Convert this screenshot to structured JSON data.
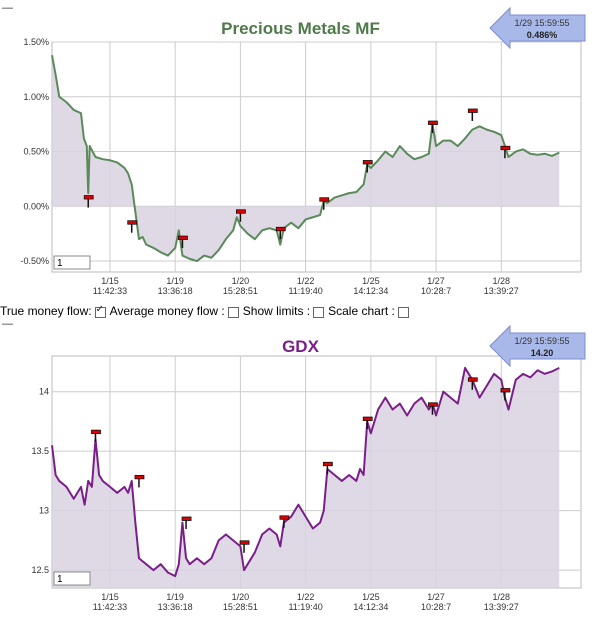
{
  "controls": {
    "true_money_flow": "True money flow:",
    "true_money_flow_checked": true,
    "average_money_flow": "Average money flow :",
    "average_money_flow_checked": false,
    "show_limits": "Show limits :",
    "show_limits_checked": false,
    "scale_chart": "Scale chart :",
    "scale_chart_checked": false
  },
  "colors": {
    "chart1_line": "#5a8a5a",
    "chart1_title": "#4f7a4a",
    "chart2_line": "#7a1f8a",
    "chart2_title": "#7a1f8a",
    "fill": "#d9d2e0",
    "marker": "#e00000",
    "grid": "#cccccc"
  },
  "chart_data": [
    {
      "type": "line",
      "title": "Precious Metals MF",
      "ylim": [
        -0.6,
        1.5
      ],
      "ytick_values": [
        -0.5,
        0,
        0.5,
        1.0,
        1.5
      ],
      "ytick_labels": [
        "-0.50%",
        "0.00%",
        "0.50%",
        "1.00%",
        "1.50%"
      ],
      "baseline": 0,
      "fill_to": "baseline",
      "x_ticks": [
        {
          "date": "1/15",
          "time": "11:42:33",
          "pos": 0.8
        },
        {
          "date": "1/19",
          "time": "13:36:18",
          "pos": 1.7
        },
        {
          "date": "1/20",
          "time": "15:28:51",
          "pos": 2.6
        },
        {
          "date": "1/22",
          "time": "11:19:40",
          "pos": 3.5
        },
        {
          "date": "1/25",
          "time": "14:12:34",
          "pos": 4.4
        },
        {
          "date": "1/27",
          "time": "10:28:7",
          "pos": 5.3
        },
        {
          "date": "1/28",
          "time": "13:39:27",
          "pos": 6.2
        }
      ],
      "callout": {
        "time": "1/29 15:59:55",
        "value": "0.486%"
      },
      "input_value": "1",
      "points": [
        [
          0,
          1.38
        ],
        [
          0.05,
          1.2
        ],
        [
          0.1,
          1.0
        ],
        [
          0.2,
          0.95
        ],
        [
          0.3,
          0.88
        ],
        [
          0.4,
          0.85
        ],
        [
          0.44,
          0.62
        ],
        [
          0.48,
          0.55
        ],
        [
          0.5,
          0.12
        ],
        [
          0.52,
          0.55
        ],
        [
          0.6,
          0.45
        ],
        [
          0.7,
          0.43
        ],
        [
          0.8,
          0.42
        ],
        [
          0.9,
          0.4
        ],
        [
          1.0,
          0.35
        ],
        [
          1.05,
          0.3
        ],
        [
          1.1,
          0.2
        ],
        [
          1.15,
          -0.05
        ],
        [
          1.2,
          -0.3
        ],
        [
          1.25,
          -0.28
        ],
        [
          1.3,
          -0.35
        ],
        [
          1.4,
          -0.38
        ],
        [
          1.5,
          -0.42
        ],
        [
          1.6,
          -0.45
        ],
        [
          1.7,
          -0.38
        ],
        [
          1.75,
          -0.22
        ],
        [
          1.8,
          -0.45
        ],
        [
          1.9,
          -0.48
        ],
        [
          2.0,
          -0.5
        ],
        [
          2.1,
          -0.45
        ],
        [
          2.2,
          -0.47
        ],
        [
          2.3,
          -0.4
        ],
        [
          2.4,
          -0.3
        ],
        [
          2.5,
          -0.22
        ],
        [
          2.55,
          -0.1
        ],
        [
          2.6,
          -0.18
        ],
        [
          2.7,
          -0.25
        ],
        [
          2.8,
          -0.3
        ],
        [
          2.9,
          -0.22
        ],
        [
          3.0,
          -0.2
        ],
        [
          3.1,
          -0.22
        ],
        [
          3.15,
          -0.35
        ],
        [
          3.2,
          -0.2
        ],
        [
          3.3,
          -0.15
        ],
        [
          3.4,
          -0.2
        ],
        [
          3.5,
          -0.12
        ],
        [
          3.6,
          -0.1
        ],
        [
          3.7,
          -0.08
        ],
        [
          3.75,
          0.05
        ],
        [
          3.8,
          0.03
        ],
        [
          3.9,
          0.08
        ],
        [
          4.0,
          0.1
        ],
        [
          4.1,
          0.12
        ],
        [
          4.2,
          0.13
        ],
        [
          4.3,
          0.2
        ],
        [
          4.35,
          0.38
        ],
        [
          4.4,
          0.35
        ],
        [
          4.5,
          0.42
        ],
        [
          4.6,
          0.5
        ],
        [
          4.7,
          0.45
        ],
        [
          4.8,
          0.55
        ],
        [
          4.9,
          0.48
        ],
        [
          5.0,
          0.43
        ],
        [
          5.1,
          0.45
        ],
        [
          5.2,
          0.48
        ],
        [
          5.25,
          0.75
        ],
        [
          5.3,
          0.55
        ],
        [
          5.4,
          0.6
        ],
        [
          5.5,
          0.6
        ],
        [
          5.6,
          0.55
        ],
        [
          5.7,
          0.62
        ],
        [
          5.8,
          0.7
        ],
        [
          5.9,
          0.73
        ],
        [
          6.0,
          0.7
        ],
        [
          6.1,
          0.68
        ],
        [
          6.2,
          0.65
        ],
        [
          6.25,
          0.55
        ],
        [
          6.3,
          0.45
        ],
        [
          6.4,
          0.5
        ],
        [
          6.5,
          0.52
        ],
        [
          6.6,
          0.48
        ],
        [
          6.7,
          0.47
        ],
        [
          6.8,
          0.48
        ],
        [
          6.9,
          0.46
        ],
        [
          7.0,
          0.49
        ]
      ],
      "markers": [
        [
          0.5,
          0.08
        ],
        [
          1.1,
          -0.15
        ],
        [
          1.8,
          -0.29
        ],
        [
          2.6,
          -0.05
        ],
        [
          3.15,
          -0.21
        ],
        [
          3.75,
          0.06
        ],
        [
          4.35,
          0.4
        ],
        [
          5.25,
          0.76
        ],
        [
          5.8,
          0.87
        ],
        [
          6.25,
          0.53
        ]
      ],
      "x_range": [
        0,
        7.3
      ]
    },
    {
      "type": "line",
      "title": "GDX",
      "ylim": [
        12.35,
        14.3
      ],
      "ytick_values": [
        12.5,
        13,
        13.5,
        14
      ],
      "ytick_labels": [
        "12.5",
        "13",
        "13.5",
        "14"
      ],
      "baseline": 12.2,
      "fill_to": "bottom",
      "x_ticks": [
        {
          "date": "1/15",
          "time": "11:42:33",
          "pos": 0.8
        },
        {
          "date": "1/19",
          "time": "13:36:18",
          "pos": 1.7
        },
        {
          "date": "1/20",
          "time": "15:28:51",
          "pos": 2.6
        },
        {
          "date": "1/22",
          "time": "11:19:40",
          "pos": 3.5
        },
        {
          "date": "1/25",
          "time": "14:12:34",
          "pos": 4.4
        },
        {
          "date": "1/27",
          "time": "10:28:7",
          "pos": 5.3
        },
        {
          "date": "1/28",
          "time": "13:39:27",
          "pos": 6.2
        }
      ],
      "callout": {
        "time": "1/29 15:59:55",
        "value": "14.20"
      },
      "input_value": "1",
      "points": [
        [
          0,
          13.55
        ],
        [
          0.05,
          13.3
        ],
        [
          0.1,
          13.25
        ],
        [
          0.2,
          13.2
        ],
        [
          0.3,
          13.1
        ],
        [
          0.4,
          13.2
        ],
        [
          0.45,
          13.05
        ],
        [
          0.5,
          13.25
        ],
        [
          0.55,
          13.2
        ],
        [
          0.6,
          13.6
        ],
        [
          0.65,
          13.3
        ],
        [
          0.7,
          13.25
        ],
        [
          0.8,
          13.2
        ],
        [
          0.9,
          13.15
        ],
        [
          1.0,
          13.2
        ],
        [
          1.05,
          13.15
        ],
        [
          1.1,
          13.25
        ],
        [
          1.15,
          12.9
        ],
        [
          1.2,
          12.6
        ],
        [
          1.3,
          12.55
        ],
        [
          1.4,
          12.5
        ],
        [
          1.5,
          12.55
        ],
        [
          1.6,
          12.48
        ],
        [
          1.7,
          12.45
        ],
        [
          1.75,
          12.55
        ],
        [
          1.8,
          12.9
        ],
        [
          1.85,
          12.6
        ],
        [
          1.9,
          12.55
        ],
        [
          2.0,
          12.6
        ],
        [
          2.1,
          12.55
        ],
        [
          2.2,
          12.6
        ],
        [
          2.3,
          12.75
        ],
        [
          2.4,
          12.8
        ],
        [
          2.5,
          12.75
        ],
        [
          2.6,
          12.7
        ],
        [
          2.65,
          12.5
        ],
        [
          2.7,
          12.55
        ],
        [
          2.8,
          12.65
        ],
        [
          2.9,
          12.8
        ],
        [
          3.0,
          12.85
        ],
        [
          3.1,
          12.8
        ],
        [
          3.15,
          12.7
        ],
        [
          3.2,
          12.9
        ],
        [
          3.3,
          12.95
        ],
        [
          3.4,
          13.05
        ],
        [
          3.5,
          12.95
        ],
        [
          3.6,
          12.85
        ],
        [
          3.7,
          12.9
        ],
        [
          3.75,
          13.0
        ],
        [
          3.8,
          13.35
        ],
        [
          3.9,
          13.3
        ],
        [
          4.0,
          13.25
        ],
        [
          4.1,
          13.3
        ],
        [
          4.2,
          13.25
        ],
        [
          4.25,
          13.35
        ],
        [
          4.3,
          13.3
        ],
        [
          4.35,
          13.75
        ],
        [
          4.4,
          13.65
        ],
        [
          4.5,
          13.85
        ],
        [
          4.6,
          13.95
        ],
        [
          4.7,
          13.85
        ],
        [
          4.8,
          13.9
        ],
        [
          4.9,
          13.8
        ],
        [
          5.0,
          13.9
        ],
        [
          5.1,
          13.95
        ],
        [
          5.2,
          13.85
        ],
        [
          5.25,
          13.9
        ],
        [
          5.3,
          13.8
        ],
        [
          5.4,
          14.0
        ],
        [
          5.5,
          13.95
        ],
        [
          5.6,
          13.9
        ],
        [
          5.7,
          14.2
        ],
        [
          5.8,
          14.1
        ],
        [
          5.9,
          13.95
        ],
        [
          6.0,
          14.05
        ],
        [
          6.1,
          14.15
        ],
        [
          6.2,
          14.1
        ],
        [
          6.25,
          13.95
        ],
        [
          6.3,
          13.85
        ],
        [
          6.4,
          14.1
        ],
        [
          6.5,
          14.15
        ],
        [
          6.6,
          14.12
        ],
        [
          6.7,
          14.18
        ],
        [
          6.8,
          14.15
        ],
        [
          6.9,
          14.17
        ],
        [
          7.0,
          14.2
        ]
      ],
      "markers": [
        [
          0.6,
          13.66
        ],
        [
          1.2,
          13.28
        ],
        [
          1.85,
          12.93
        ],
        [
          2.65,
          12.73
        ],
        [
          3.2,
          12.94
        ],
        [
          3.8,
          13.39
        ],
        [
          4.35,
          13.77
        ],
        [
          5.25,
          13.89
        ],
        [
          5.8,
          14.1
        ],
        [
          6.25,
          14.01
        ]
      ],
      "x_range": [
        0,
        7.3
      ]
    }
  ]
}
